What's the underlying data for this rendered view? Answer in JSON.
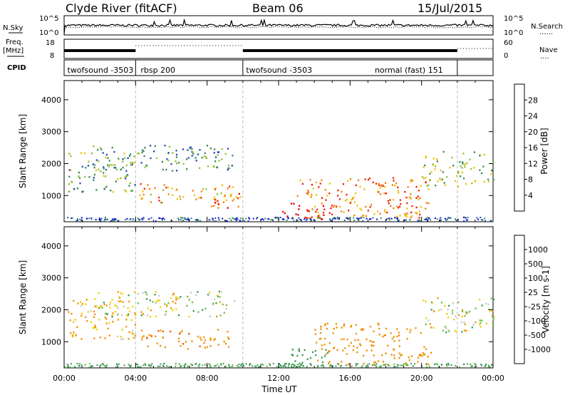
{
  "header": {
    "station": "Clyde River (fitACF)",
    "beam": "Beam 06",
    "date": "15/Jul/2015"
  },
  "noise_panel": {
    "left_label": "N.Sky",
    "right_label": "N.Search",
    "right_legend_line": "......",
    "ytick_top": "10^5",
    "ytick_bottom": "10^0"
  },
  "freq_panel": {
    "left_label_top": "Freq.",
    "left_label_units": "[MHz]",
    "left_ticks": [
      "18",
      "8"
    ],
    "right_label": "Nave",
    "right_legend_line": "....",
    "right_ticks": [
      "60",
      "0"
    ]
  },
  "cpid": {
    "label": "CPID",
    "segments": [
      {
        "name": "twofsound -3503",
        "start_h": 0,
        "end_h": 4
      },
      {
        "name": "rbsp 200",
        "start_h": 4,
        "end_h": 10
      },
      {
        "name": "twofsound -3503",
        "start_h": 10,
        "end_h": 22
      },
      {
        "name": "normal (fast) 151",
        "start_h": 22,
        "end_h": 24
      }
    ],
    "segment_labels_rendered": [
      {
        "text": "twofsound -3503",
        "at_h": 0.1
      },
      {
        "text": "rbsp 200",
        "at_h": 4.2
      },
      {
        "text": "twofsound -3503",
        "at_h": 10.1
      },
      {
        "text": "normal (fast) 151",
        "at_h": 17.3
      }
    ]
  },
  "chart_data": [
    {
      "type": "heatmap",
      "name": "Power",
      "ylabel": "Slant Range [km]",
      "xlabel": "",
      "xlim_hours": [
        0,
        24
      ],
      "ylim_km": [
        180,
        4600
      ],
      "yticks": [
        1000,
        2000,
        3000,
        4000
      ],
      "colorbar": {
        "label": "Power [dB]",
        "ticks": [
          "4",
          "8",
          "12",
          "16",
          "20",
          "24",
          "28"
        ],
        "colors": [
          "#0000e0",
          "#2a4bb8",
          "#3a8a5a",
          "#90c030",
          "#f0c000",
          "#f08000",
          "#f02000",
          "#e00000"
        ],
        "range": [
          0,
          32
        ]
      },
      "echo_regions": [
        {
          "t0": 0.2,
          "t1": 4.0,
          "r0": 1100,
          "r1": 2400,
          "value": 12
        },
        {
          "t0": 1.5,
          "t1": 9.5,
          "r0": 1800,
          "r1": 2600,
          "value": 10
        },
        {
          "t0": 4.2,
          "t1": 9.5,
          "r0": 800,
          "r1": 1400,
          "value": 20
        },
        {
          "t0": 8.0,
          "t1": 10.0,
          "r0": 600,
          "r1": 1100,
          "value": 24
        },
        {
          "t0": 12.2,
          "t1": 15.0,
          "r0": 250,
          "r1": 800,
          "value": 30
        },
        {
          "t0": 13.0,
          "t1": 20.5,
          "r0": 300,
          "r1": 1600,
          "value": 22
        },
        {
          "t0": 20.0,
          "t1": 24.0,
          "r0": 1300,
          "r1": 2400,
          "value": 14
        }
      ]
    },
    {
      "type": "heatmap",
      "name": "Velocity",
      "ylabel": "Slant Range [km]",
      "xlabel": "Time UT",
      "xlim_hours": [
        0,
        24
      ],
      "ylim_km": [
        180,
        4600
      ],
      "xticks": [
        "00:00",
        "04:00",
        "08:00",
        "12:00",
        "16:00",
        "20:00",
        "00:00"
      ],
      "yticks": [
        1000,
        2000,
        3000,
        4000
      ],
      "colorbar": {
        "label": "Velocity [m s-1]",
        "ticks": [
          "1000",
          "500",
          "100",
          "25",
          "-25",
          "-100",
          "-500",
          "-1000"
        ],
        "colors": [
          "#2040c0",
          "#2e7060",
          "#3a9a50",
          "#70c040",
          "#c8c8c0",
          "#f0d000",
          "#f09000",
          "#f05000",
          "#e00000"
        ],
        "range": [
          -1000,
          1000
        ]
      },
      "echo_regions": [
        {
          "t0": 0.2,
          "t1": 4.0,
          "r0": 1100,
          "r1": 2400,
          "value": -150
        },
        {
          "t0": 1.5,
          "t1": 9.5,
          "r0": 1800,
          "r1": 2600,
          "value": 0
        },
        {
          "t0": 4.2,
          "t1": 9.5,
          "r0": 800,
          "r1": 1400,
          "value": -400
        },
        {
          "t0": 12.2,
          "t1": 15.0,
          "r0": 250,
          "r1": 800,
          "value": 300
        },
        {
          "t0": 14.0,
          "t1": 20.5,
          "r0": 300,
          "r1": 1600,
          "value": -300
        },
        {
          "t0": 20.0,
          "t1": 24.0,
          "r0": 1300,
          "r1": 2400,
          "value": 0
        }
      ]
    }
  ]
}
